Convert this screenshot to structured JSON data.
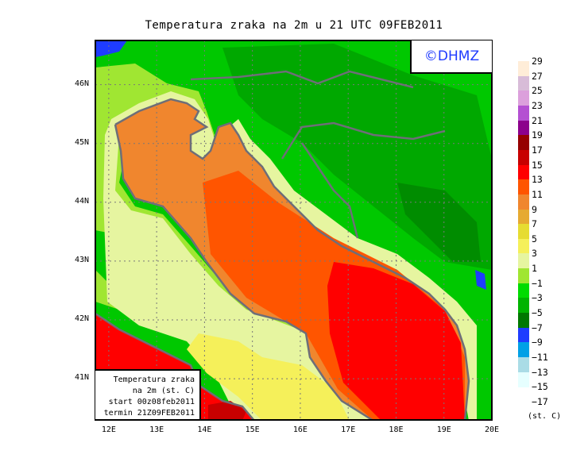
{
  "title": "Temperatura zraka na 2m u 21 UTC 09FEB2011",
  "watermark": "©DHMZ",
  "legend_box": [
    "Temperatura zraka",
    "na 2m (st. C)",
    "start 00z08feb2011",
    "termin 21Z09FEB2011"
  ],
  "axes": {
    "lat_ticks": [
      "46N",
      "45N",
      "44N",
      "43N",
      "42N",
      "41N"
    ],
    "lon_ticks": [
      "12E",
      "13E",
      "14E",
      "15E",
      "16E",
      "17E",
      "18E",
      "19E",
      "20E"
    ],
    "lon_range": [
      11.72,
      20.0
    ],
    "lat_range": [
      40.3,
      46.75
    ],
    "grid": "dotted"
  },
  "colorbar": {
    "unit": "(st. C)",
    "labels": [
      "29",
      "27",
      "25",
      "23",
      "21",
      "19",
      "17",
      "15",
      "13",
      "11",
      "9",
      "7",
      "5",
      "3",
      "1",
      "−1",
      "−3",
      "−5",
      "−7",
      "−9",
      "−11",
      "−13",
      "−15",
      "−17"
    ],
    "colors": [
      "#ffedd8",
      "#d8bcd8",
      "#dca0dc",
      "#b450d2",
      "#8c008c",
      "#960000",
      "#c80000",
      "#ff0000",
      "#ff5500",
      "#f0862e",
      "#e6aa32",
      "#e6dc32",
      "#f5f05a",
      "#e6f5a0",
      "#a0e632",
      "#00dc00",
      "#00b400",
      "#007800",
      "#1e3cff",
      "#00a0e6",
      "#aadce6",
      "#e6ffff"
    ]
  }
}
